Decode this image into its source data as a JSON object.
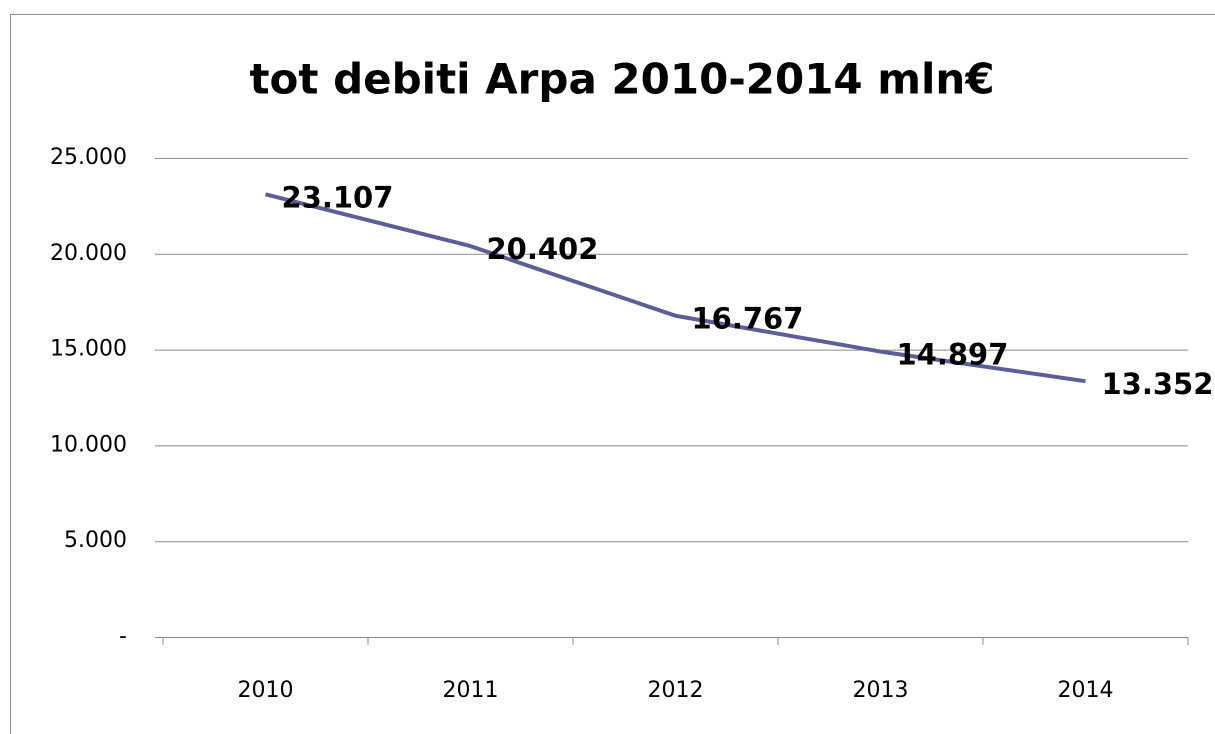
{
  "chart_data": {
    "type": "line",
    "title": "tot debiti Arpa 2010-2014 mln€",
    "categories": [
      "2010",
      "2011",
      "2012",
      "2013",
      "2014"
    ],
    "series": [
      {
        "name": "tot debiti",
        "color": "#5f5c98",
        "values": [
          23107,
          20402,
          16767,
          14897,
          13352
        ],
        "value_labels": [
          "23.107",
          "20.402",
          "16.767",
          "14.897",
          "13.352"
        ]
      }
    ],
    "ylim": [
      0,
      25000
    ],
    "yticks": [
      {
        "value": 0,
        "label": "-"
      },
      {
        "value": 5000,
        "label": "5.000"
      },
      {
        "value": 10000,
        "label": "10.000"
      },
      {
        "value": 15000,
        "label": "15.000"
      },
      {
        "value": 20000,
        "label": "20.000"
      },
      {
        "value": 25000,
        "label": "25.000"
      }
    ],
    "grid": true
  }
}
